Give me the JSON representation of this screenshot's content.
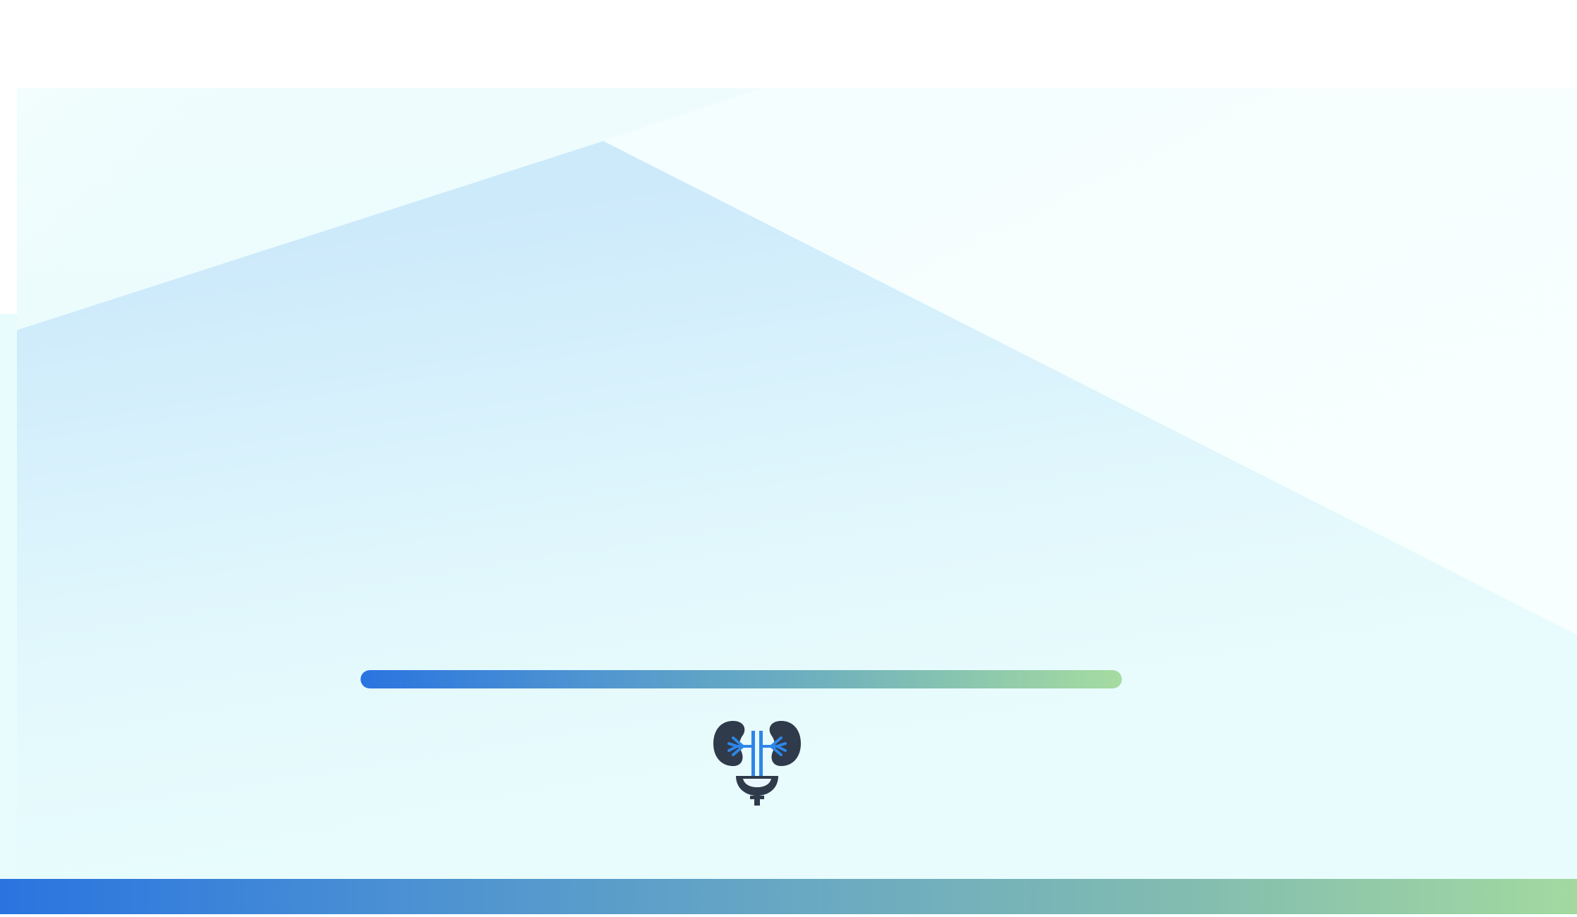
{
  "app": {
    "screen": "splash",
    "logo_icon": "kidneys-bladder-icon"
  },
  "loading": {
    "progress_percent": 100
  },
  "colors": {
    "accent_start": "#2a74e0",
    "accent_end": "#a6dca0",
    "logo_dark": "#2f3a4a",
    "logo_blue": "#2e86e8",
    "background_tint": "#e8fcfd"
  }
}
